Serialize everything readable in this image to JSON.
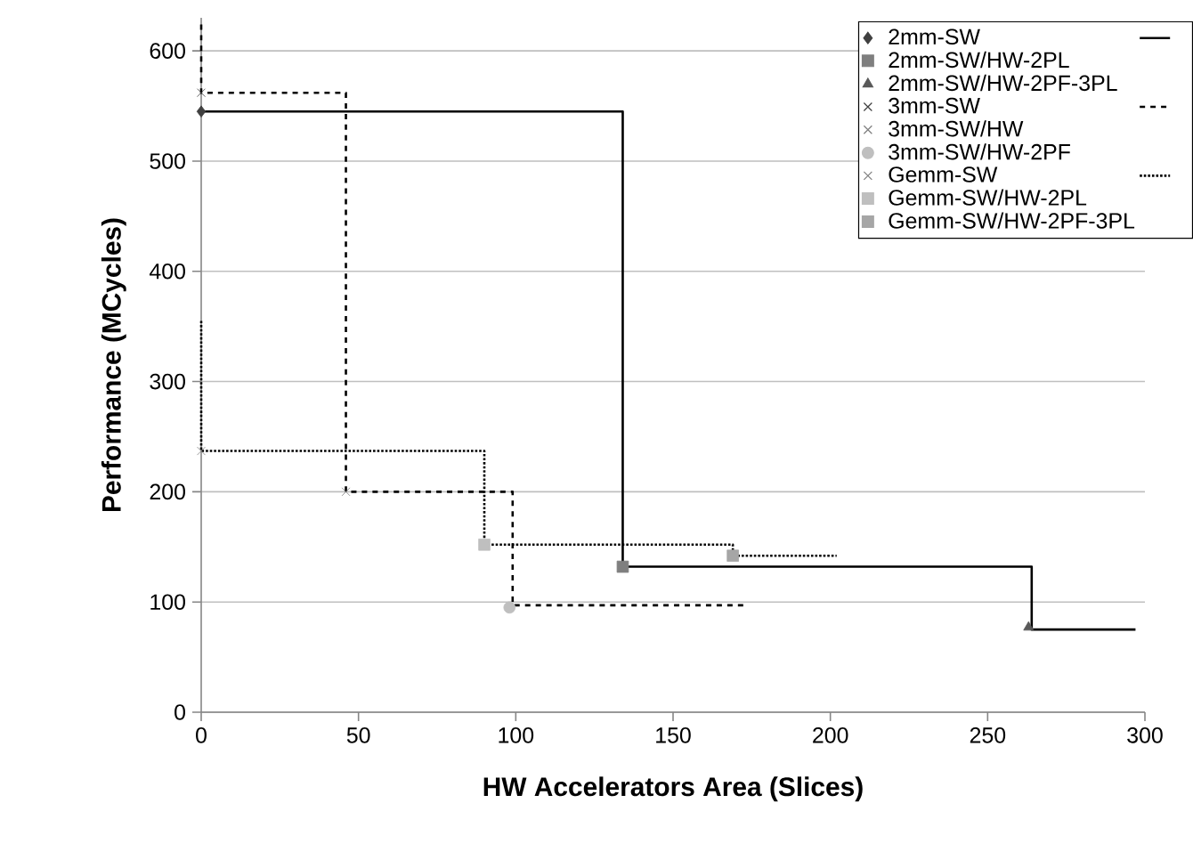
{
  "chart_data": {
    "type": "scatter",
    "xlabel": "HW Accelerators Area (Slices)",
    "ylabel": "Performance (MCycles)",
    "xlim": [
      0,
      300
    ],
    "ylim": [
      0,
      630
    ],
    "xticks": [
      0,
      50,
      100,
      150,
      200,
      250,
      300
    ],
    "yticks": [
      0,
      100,
      200,
      300,
      400,
      500,
      600
    ],
    "grid": "y",
    "legend": "top right",
    "series": [
      {
        "name": "2mm-SW",
        "marker": "diamond",
        "color": "#404040",
        "x": [
          0
        ],
        "values": [
          545
        ]
      },
      {
        "type": "line",
        "line_style": "solid",
        "marker": "none",
        "color": "#000000",
        "x": [
          0,
          134,
          134,
          264,
          264,
          297
        ],
        "values": [
          545,
          545,
          132,
          132,
          75,
          75
        ]
      },
      {
        "name": "2mm-SW/HW-2PL",
        "marker": "square",
        "color": "#7f7f7f",
        "x": [
          134
        ],
        "values": [
          132
        ]
      },
      {
        "name": "2mm-SW/HW-2PF-3PL",
        "marker": "triangle",
        "color": "#595959",
        "x": [
          263
        ],
        "values": [
          77
        ]
      },
      {
        "name": "3mm-SW",
        "marker": "cross",
        "color": "#404040",
        "x": [
          0
        ],
        "values": [
          562
        ]
      },
      {
        "type": "line",
        "line_style": "dashed",
        "marker": "none",
        "color": "#000000",
        "x": [
          0,
          0,
          46,
          46,
          99,
          99,
          173
        ],
        "values": [
          624,
          562,
          562,
          200,
          200,
          97,
          97
        ]
      },
      {
        "name": "3mm-SW/HW",
        "marker": "cross",
        "color": "#7f7f7f",
        "x": [
          46
        ],
        "values": [
          200
        ]
      },
      {
        "name": "3mm-SW/HW-2PF",
        "marker": "circle",
        "color": "#bfbfbf",
        "x": [
          98
        ],
        "values": [
          95
        ]
      },
      {
        "name": "Gemm-SW",
        "marker": "cross",
        "color": "#7f7f7f",
        "x": [
          0
        ],
        "values": [
          237
        ]
      },
      {
        "type": "line",
        "line_style": "dotted",
        "marker": "none",
        "color": "#000000",
        "x": [
          0,
          0,
          90,
          90,
          169,
          169,
          202
        ],
        "values": [
          355,
          237,
          237,
          152,
          152,
          142,
          142
        ]
      },
      {
        "name": "Gemm-SW/HW-2PL",
        "marker": "square",
        "color": "#bfbfbf",
        "x": [
          90
        ],
        "values": [
          152
        ]
      },
      {
        "name": "Gemm-SW/HW-2PF-3PL",
        "marker": "square",
        "color": "#a6a6a6",
        "x": [
          169
        ],
        "values": [
          142
        ]
      }
    ]
  }
}
